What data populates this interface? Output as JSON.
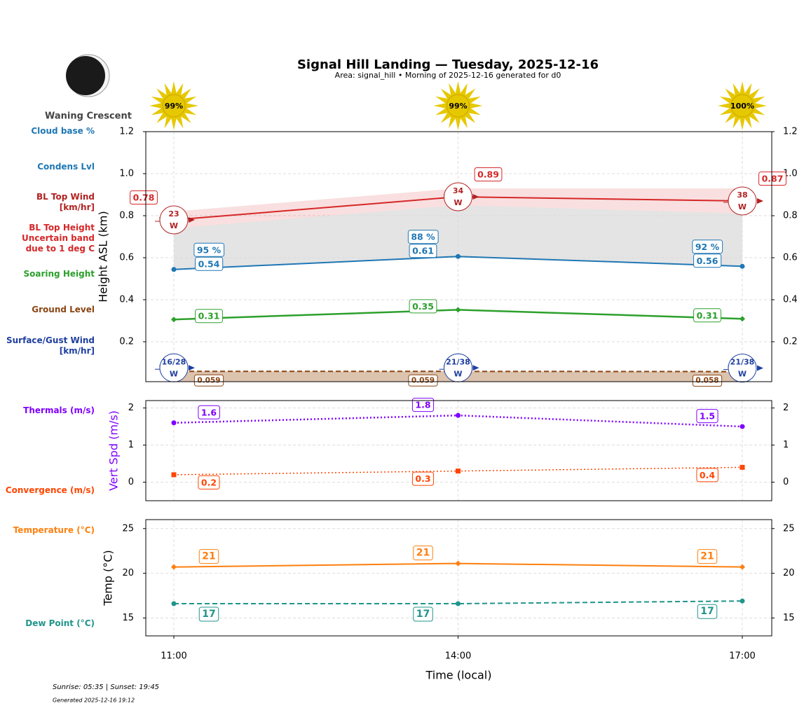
{
  "header": {
    "title": "Signal Hill Landing — Tuesday, 2025-12-16",
    "subtitle": "Area: signal_hill • Morning of 2025-12-16 generated for d0",
    "moon_phase": "Waning Crescent"
  },
  "sun": {
    "values": [
      99,
      99,
      100
    ],
    "value_labels": [
      "99%",
      "99%",
      "100%"
    ],
    "color": "#e6c800"
  },
  "chart_data": [
    {
      "type": "line",
      "ylabel": "Height ASL (km)",
      "ylim": [
        0.01,
        1.2
      ],
      "yticks": [
        0.2,
        0.4,
        0.6,
        0.8,
        {
          "value": 1,
          "label": "1.0"
        },
        1.2
      ],
      "grid": true,
      "cloud_base": {
        "name": "Cloud base %",
        "color": "#1f77b4",
        "values": [
          95,
          88,
          92
        ],
        "value_labels": [
          "95 %",
          "88 %",
          "92 %"
        ]
      },
      "series": [
        {
          "name": "Condens Lvl",
          "color": "#1f77b4",
          "values": [
            0.544,
            0.606,
            0.559
          ],
          "value_labels": [
            "0.54",
            "0.61",
            "0.56"
          ],
          "marker": "circle"
        },
        {
          "name": "BL Top Height\nUncertain band\ndue to 1 deg C",
          "color": "#d62728",
          "values": [
            0.78,
            0.89,
            0.87
          ],
          "band_low": [
            0.74,
            0.85,
            0.81
          ],
          "band_high": [
            0.82,
            0.93,
            0.93
          ]
        },
        {
          "name": "Soaring Height",
          "color": "#2ca02c",
          "values": [
            0.306,
            0.352,
            0.309
          ],
          "value_labels": [
            "0.31",
            "0.35",
            "0.31"
          ],
          "marker": "diamond"
        },
        {
          "name": "Ground Level",
          "color": "#8b4513",
          "values": [
            0.059,
            0.059,
            0.058
          ],
          "dash": "dashed",
          "fill": "#dcc3ae"
        }
      ],
      "winds": [
        {
          "name": "BL Top Wind\n[km/hr]",
          "color": "#b22222",
          "values": [
            23,
            34,
            38
          ],
          "directions": [
            "W",
            "W",
            "W"
          ]
        },
        {
          "name": "Surface/Gust Wind\n[km/hr]",
          "color": "#1f3fa0",
          "values": [
            16,
            21,
            21
          ],
          "gusts": [
            28,
            38,
            38
          ],
          "value_labels": [
            "16/28",
            "21/38",
            "21/38"
          ],
          "directions": [
            "W",
            "W",
            "W"
          ]
        }
      ]
    },
    {
      "type": "line",
      "ylabel": "Vert Spd (m/s)",
      "ylabel_color": "#7f00ff",
      "ylim": [
        -0.5,
        2.2
      ],
      "yticks": [
        0,
        1,
        2
      ],
      "grid": true,
      "series": [
        {
          "name": "Thermals (m/s)",
          "color": "#7f00ff",
          "values": [
            1.6,
            1.8,
            1.5
          ],
          "marker": "circle",
          "dash": "dotted"
        },
        {
          "name": "Convergence (m/s)",
          "color": "#ff4500",
          "values": [
            0.2,
            0.3,
            0.4
          ],
          "marker": "square",
          "dash": "dotted"
        }
      ]
    },
    {
      "type": "line",
      "ylabel": "Temp (°C)",
      "xlabel": "Time (local)",
      "categories": [
        "11:00",
        "14:00",
        "17:00"
      ],
      "ylim": [
        13,
        26
      ],
      "yticks": [
        15,
        20,
        25
      ],
      "grid": true,
      "series": [
        {
          "name": "Temperature (°C)",
          "color": "#ff7f0e",
          "values": [
            20.7,
            21.1,
            20.7
          ],
          "value_labels": [
            "21",
            "21",
            "21"
          ],
          "marker": "diamond"
        },
        {
          "name": "Dew Point (°C)",
          "color": "#20958a",
          "values": [
            16.6,
            16.6,
            16.9
          ],
          "value_labels": [
            "17",
            "17",
            "17"
          ],
          "marker": "circle",
          "dash": "dashed"
        }
      ]
    }
  ],
  "footer": {
    "sun_times": "Sunrise: 05:35 | Sunset: 19:45",
    "generated": "Generated 2025-12-16 19:12"
  }
}
